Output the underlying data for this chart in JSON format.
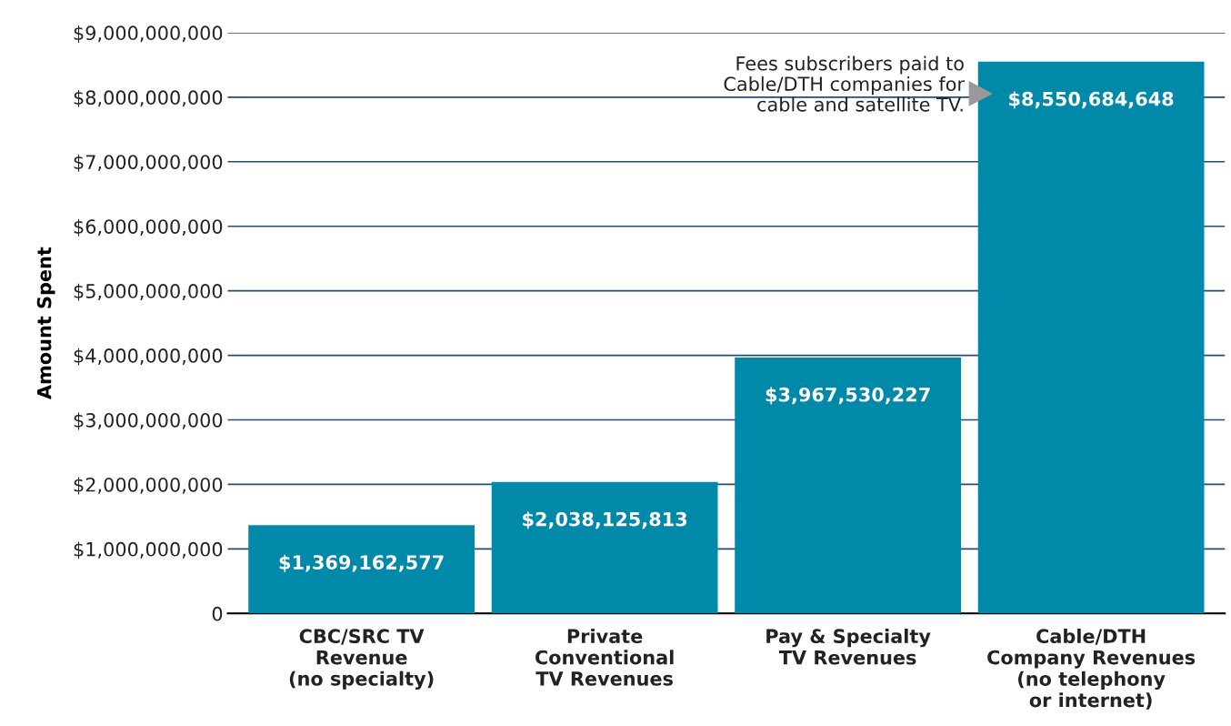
{
  "chart_data": {
    "type": "bar",
    "ylabel": "Amount Spent",
    "categories": [
      "CBC/SRC TV\nRevenue\n(no specialty)",
      "Private\nConventional\nTV Revenues",
      "Pay & Specialty\nTV Revenues",
      "Cable/DTH\nCompany Revenues\n(no telephony\nor internet)"
    ],
    "values": [
      1369162577,
      2038125813,
      3967530227,
      8550684648
    ],
    "value_labels": [
      "$1,369,162,577",
      "$2,038,125,813",
      "$3,967,530,227",
      "$8,550,684,648"
    ],
    "color": "#0089a8",
    "ylim": [
      0,
      9000000000
    ],
    "yticks": [
      {
        "value": 0,
        "label": "0"
      },
      {
        "value": 1000000000,
        "label": "$1,000,000,000"
      },
      {
        "value": 2000000000,
        "label": "$2,000,000,000"
      },
      {
        "value": 3000000000,
        "label": "$3,000,000,000"
      },
      {
        "value": 4000000000,
        "label": "$4,000,000,000"
      },
      {
        "value": 5000000000,
        "label": "$5,000,000,000"
      },
      {
        "value": 6000000000,
        "label": "$6,000,000,000"
      },
      {
        "value": 7000000000,
        "label": "$7,000,000,000"
      },
      {
        "value": 8000000000,
        "label": "$8,000,000,000"
      },
      {
        "value": 9000000000,
        "label": "$9,000,000,000"
      }
    ],
    "grid": "y",
    "annotations": [
      "Fees subscribers paid to\nCable/DTH companies for\ncable and satellite TV."
    ]
  }
}
